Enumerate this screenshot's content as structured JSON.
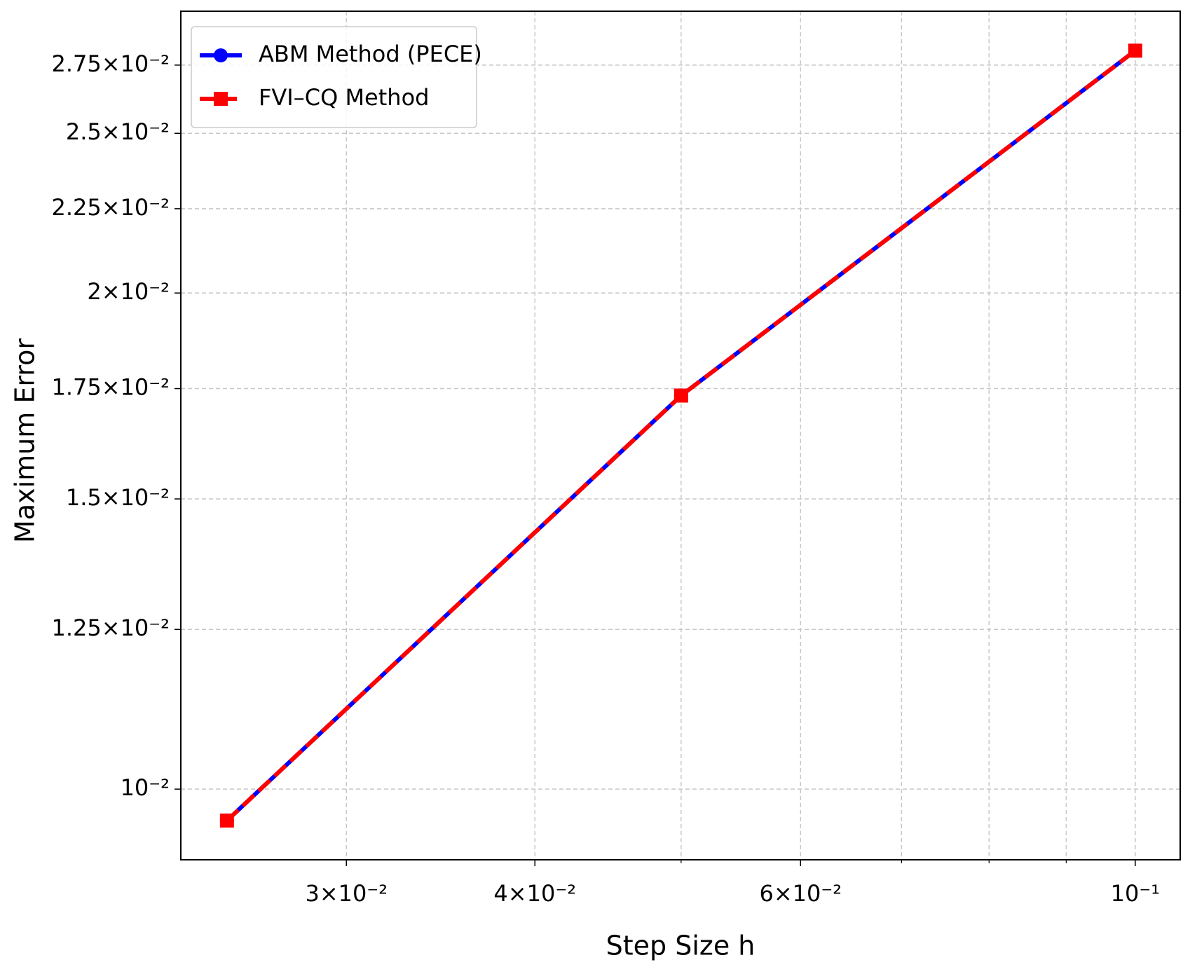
{
  "chart_data": {
    "type": "line",
    "xlabel": "Step Size h",
    "ylabel": "Maximum Error",
    "x": [
      0.025,
      0.05,
      0.1
    ],
    "series": [
      {
        "name": "ABM Method (PECE)",
        "color": "#0000ff",
        "linestyle": "solid",
        "marker": "circle",
        "values": [
          0.00957,
          0.01733,
          0.02806
        ]
      },
      {
        "name": "FVI–CQ Method",
        "color": "#ff0000",
        "linestyle": "dashed",
        "marker": "square",
        "values": [
          0.00957,
          0.01733,
          0.02806
        ]
      }
    ],
    "xscale": "log",
    "yscale": "log",
    "xlim": [
      0.0233,
      0.1071
    ],
    "ylim": [
      0.00906,
      0.02965
    ],
    "xticks": [
      {
        "value": 0.03,
        "label": "3×10⁻²"
      },
      {
        "value": 0.04,
        "label": "4×10⁻²"
      },
      {
        "value": 0.06,
        "label": "6×10⁻²"
      },
      {
        "value": 0.1,
        "label": "10⁻¹"
      }
    ],
    "xminorticks": [
      0.05,
      0.07,
      0.08,
      0.09
    ],
    "yticks": [
      {
        "value": 0.01,
        "label": "10⁻²"
      },
      {
        "value": 0.0125,
        "label": "1.25×10⁻²"
      },
      {
        "value": 0.015,
        "label": "1.5×10⁻²"
      },
      {
        "value": 0.0175,
        "label": "1.75×10⁻²"
      },
      {
        "value": 0.02,
        "label": "2×10⁻²"
      },
      {
        "value": 0.0225,
        "label": "2.25×10⁻²"
      },
      {
        "value": 0.025,
        "label": "2.5×10⁻²"
      },
      {
        "value": 0.0275,
        "label": "2.75×10⁻²"
      }
    ],
    "grid": true,
    "legend": "upper left"
  }
}
